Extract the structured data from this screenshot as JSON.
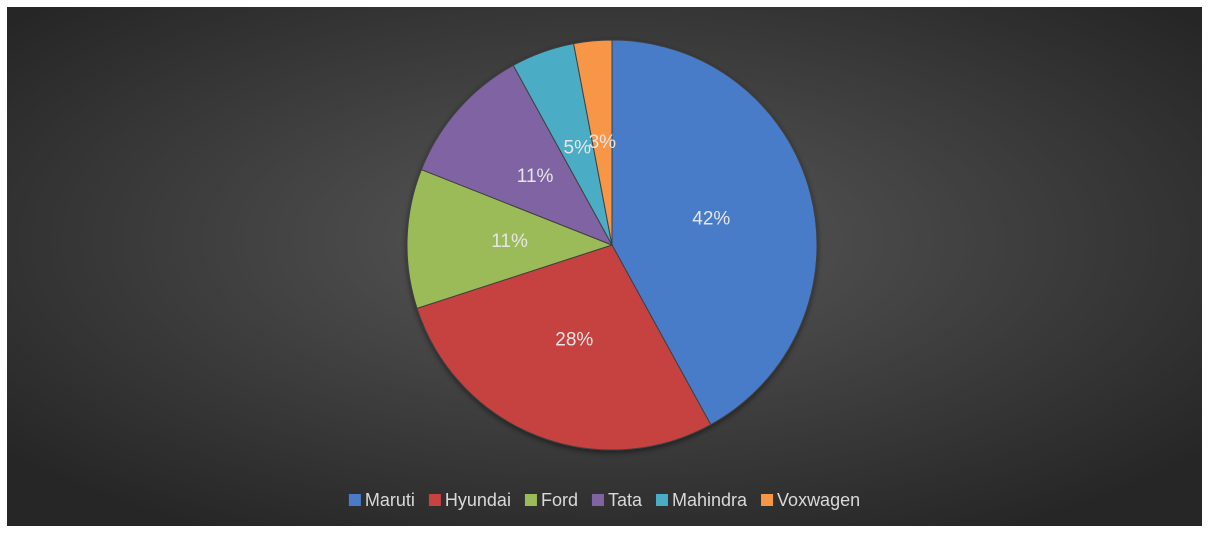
{
  "chart_data": {
    "type": "pie",
    "categories": [
      "Maruti",
      "Hyundai",
      "Ford",
      "Tata",
      "Mahindra",
      "Voxwagen"
    ],
    "values": [
      42,
      28,
      11,
      11,
      5,
      3
    ],
    "value_labels": [
      "42%",
      "28%",
      "11%",
      "11%",
      "5%",
      "3%"
    ],
    "colors": [
      "#4a7bc8",
      "#c6433f",
      "#9bbb59",
      "#8064a2",
      "#4bacc6",
      "#f79646"
    ],
    "legend": "bottom"
  }
}
